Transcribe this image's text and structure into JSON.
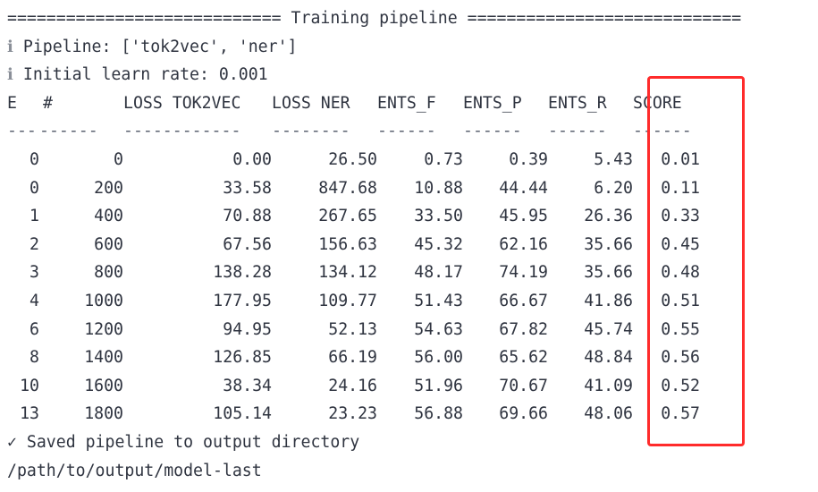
{
  "banner": "============================ Training pipeline ============================",
  "info_lines": [
    {
      "prefix": "ℹ",
      "text": "Pipeline: ['tok2vec', 'ner']"
    },
    {
      "prefix": "ℹ",
      "text": "Initial learn rate: 0.001"
    }
  ],
  "table": {
    "headers": [
      "E",
      "#",
      "LOSS TOK2VEC",
      "LOSS NER",
      "ENTS_F",
      "ENTS_P",
      "ENTS_R",
      "SCORE"
    ],
    "separators": [
      "---",
      "------",
      "------------",
      "--------",
      "------",
      "------",
      "------",
      "------"
    ],
    "rows": [
      [
        "0",
        "0",
        "0.00",
        "26.50",
        "0.73",
        "0.39",
        "5.43",
        "0.01"
      ],
      [
        "0",
        "200",
        "33.58",
        "847.68",
        "10.88",
        "44.44",
        "6.20",
        "0.11"
      ],
      [
        "1",
        "400",
        "70.88",
        "267.65",
        "33.50",
        "45.95",
        "26.36",
        "0.33"
      ],
      [
        "2",
        "600",
        "67.56",
        "156.63",
        "45.32",
        "62.16",
        "35.66",
        "0.45"
      ],
      [
        "3",
        "800",
        "138.28",
        "134.12",
        "48.17",
        "74.19",
        "35.66",
        "0.48"
      ],
      [
        "4",
        "1000",
        "177.95",
        "109.77",
        "51.43",
        "66.67",
        "41.86",
        "0.51"
      ],
      [
        "6",
        "1200",
        "94.95",
        "52.13",
        "54.63",
        "67.82",
        "45.74",
        "0.55"
      ],
      [
        "8",
        "1400",
        "126.85",
        "66.19",
        "56.00",
        "65.62",
        "48.84",
        "0.56"
      ],
      [
        "10",
        "1600",
        "38.34",
        "24.16",
        "51.96",
        "70.67",
        "41.09",
        "0.52"
      ],
      [
        "13",
        "1800",
        "105.14",
        "23.23",
        "56.88",
        "69.66",
        "48.06",
        "0.57"
      ]
    ]
  },
  "footer": {
    "check_icon": "check-icon",
    "saved_message": "Saved pipeline to output directory",
    "output_path": "/path/to/output/model-last"
  },
  "highlight_color": "#ff2b2b"
}
